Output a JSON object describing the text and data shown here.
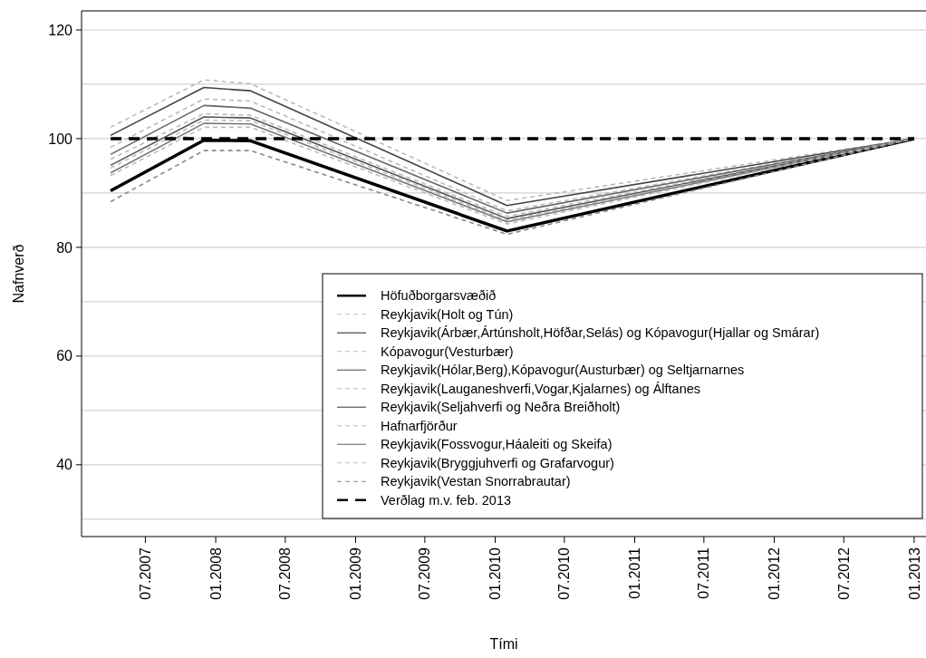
{
  "chart_data": {
    "type": "line",
    "xlabel": "Tími",
    "ylabel": "Nafnverð",
    "x": [
      "2007-04",
      "2007-12",
      "2008-04",
      "2010-02",
      "2013-01"
    ],
    "xlim": [
      "2007-01-15",
      "2013-02-01"
    ],
    "xticks": [
      {
        "value": "2007-07",
        "label": "07.2007"
      },
      {
        "value": "2008-01",
        "label": "01.2008"
      },
      {
        "value": "2008-07",
        "label": "07.2008"
      },
      {
        "value": "2009-01",
        "label": "01.2009"
      },
      {
        "value": "2009-07",
        "label": "07.2009"
      },
      {
        "value": "2010-01",
        "label": "01.2010"
      },
      {
        "value": "2010-07",
        "label": "07.2010"
      },
      {
        "value": "2011-01",
        "label": "01.2011"
      },
      {
        "value": "2011-07",
        "label": "07.2011"
      },
      {
        "value": "2012-01",
        "label": "01.2012"
      },
      {
        "value": "2012-07",
        "label": "07.2012"
      },
      {
        "value": "2013-01",
        "label": "01.2013"
      }
    ],
    "ylim": [
      26.8,
      123.5
    ],
    "yticks": [
      {
        "value": 30,
        "label": null
      },
      40,
      {
        "value": 50,
        "label": null
      },
      60,
      {
        "value": 70,
        "label": null
      },
      80,
      {
        "value": 90,
        "label": null
      },
      100,
      {
        "value": 110,
        "label": null
      },
      120
    ],
    "grid": "y",
    "legend": "bottom right",
    "marker": "none",
    "series": [
      {
        "name": "Höfuðborgarsvæðið",
        "color": "#000000",
        "line_style": "solid",
        "values": [
          90.4,
          99.7,
          99.6,
          83.0,
          100
        ]
      },
      {
        "name": "Reykjavik(Holt og Tún)",
        "color": "#bbbbbb",
        "line_style": "dashed",
        "values": [
          102.1,
          110.8,
          110.1,
          88.6,
          100
        ]
      },
      {
        "name": "Reykjavik(Árbær,Ártúnsholt,Höfðar,Selás) og Kópavogur(Hjallar og Smárar)",
        "color": "#444444",
        "line_style": "solid",
        "values": [
          100.6,
          109.4,
          108.8,
          87.7,
          100
        ]
      },
      {
        "name": "Kópavogur(Vesturbær)",
        "color": "#bbbbbb",
        "line_style": "dashed",
        "values": [
          98.4,
          107.3,
          106.9,
          86.7,
          100
        ]
      },
      {
        "name": "Reykjavik(Hólar,Berg),Kópavogur(Austurbær) og Seltjarnarnes",
        "color": "#666666",
        "line_style": "solid",
        "values": [
          97.1,
          106.1,
          105.6,
          86.3,
          100
        ]
      },
      {
        "name": "Reykjavik(Lauganeshverfi,Vogar,Kjalarnes) og Álftanes",
        "color": "#bbbbbb",
        "line_style": "dashed",
        "values": [
          96.2,
          104.6,
          104.3,
          85.7,
          100
        ]
      },
      {
        "name": "Reykjavik(Seljahverfi og Neðra Breiðholt)",
        "color": "#555555",
        "line_style": "solid",
        "values": [
          95.1,
          104.0,
          103.8,
          85.3,
          100
        ]
      },
      {
        "name": "Hafnarfjörður",
        "color": "#bbbbbb",
        "line_style": "dashed",
        "values": [
          94.6,
          103.4,
          103.3,
          85.0,
          100
        ]
      },
      {
        "name": "Reykjavik(Fossvogur,Háaleiti og Skeifa)",
        "color": "#777777",
        "line_style": "solid",
        "values": [
          93.7,
          102.8,
          102.7,
          84.7,
          100
        ]
      },
      {
        "name": "Reykjavik(Bryggjuhverfi og Grafarvogur)",
        "color": "#bbbbbb",
        "line_style": "dashed",
        "values": [
          93.2,
          102.1,
          102.1,
          84.3,
          100
        ]
      },
      {
        "name": "Reykjavik(Vestan Snorrabrautar)",
        "color": "#888888",
        "line_style": "dashed",
        "values": [
          88.4,
          97.8,
          97.8,
          82.4,
          100
        ]
      },
      {
        "name": "Verðlag m.v. feb. 2013",
        "color": "#000000",
        "line_style": "dashed",
        "values": [
          100,
          100,
          100,
          100,
          100
        ]
      }
    ]
  }
}
